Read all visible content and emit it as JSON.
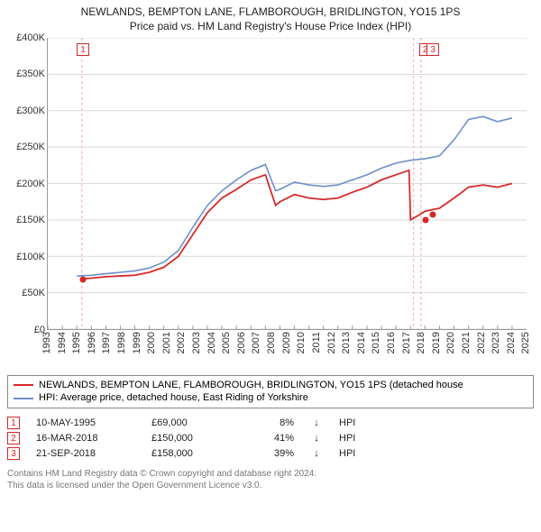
{
  "title": "NEWLANDS, BEMPTON LANE, FLAMBOROUGH, BRIDLINGTON, YO15 1PS",
  "subtitle": "Price paid vs. HM Land Registry's House Price Index (HPI)",
  "chart": {
    "type": "line",
    "background_color": "#ffffff",
    "grid_color": "#d9d9d9",
    "axis_color": "#999999",
    "ylim": [
      0,
      400000
    ],
    "ytick_step": 50000,
    "y_ticks": [
      {
        "v": 0,
        "label": "£0"
      },
      {
        "v": 50000,
        "label": "£50K"
      },
      {
        "v": 100000,
        "label": "£100K"
      },
      {
        "v": 150000,
        "label": "£150K"
      },
      {
        "v": 200000,
        "label": "£200K"
      },
      {
        "v": 250000,
        "label": "£250K"
      },
      {
        "v": 300000,
        "label": "£300K"
      },
      {
        "v": 350000,
        "label": "£350K"
      },
      {
        "v": 400000,
        "label": "£400K"
      }
    ],
    "x_years": [
      1993,
      1994,
      1995,
      1996,
      1997,
      1998,
      1999,
      2000,
      2001,
      2002,
      2003,
      2004,
      2005,
      2006,
      2007,
      2008,
      2009,
      2010,
      2011,
      2012,
      2013,
      2014,
      2015,
      2016,
      2017,
      2018,
      2019,
      2020,
      2021,
      2022,
      2023,
      2024,
      2025
    ],
    "xlim": [
      1993,
      2026
    ],
    "property_series": {
      "color": "#d62728",
      "line_width": 1.8,
      "points": [
        [
          1995.35,
          69000
        ],
        [
          1996,
          70000
        ],
        [
          1997,
          72000
        ],
        [
          1998,
          73000
        ],
        [
          1999,
          74000
        ],
        [
          2000,
          78000
        ],
        [
          2001,
          85000
        ],
        [
          2002,
          100000
        ],
        [
          2003,
          130000
        ],
        [
          2004,
          160000
        ],
        [
          2005,
          180000
        ],
        [
          2006,
          192000
        ],
        [
          2007,
          205000
        ],
        [
          2008,
          212000
        ],
        [
          2008.7,
          170000
        ],
        [
          2009,
          175000
        ],
        [
          2010,
          185000
        ],
        [
          2011,
          180000
        ],
        [
          2012,
          178000
        ],
        [
          2013,
          180000
        ],
        [
          2014,
          188000
        ],
        [
          2015,
          195000
        ],
        [
          2016,
          205000
        ],
        [
          2017,
          212000
        ],
        [
          2017.9,
          218000
        ],
        [
          2018.0,
          150000
        ],
        [
          2018.7,
          158000
        ],
        [
          2019,
          162000
        ],
        [
          2020,
          166000
        ],
        [
          2021,
          180000
        ],
        [
          2022,
          195000
        ],
        [
          2023,
          198000
        ],
        [
          2024,
          195000
        ],
        [
          2025,
          200000
        ]
      ]
    },
    "hpi_series": {
      "color": "#6b8fc9",
      "line_width": 1.6,
      "points": [
        [
          1995,
          73000
        ],
        [
          1996,
          74000
        ],
        [
          1997,
          76000
        ],
        [
          1998,
          78000
        ],
        [
          1999,
          80000
        ],
        [
          2000,
          84000
        ],
        [
          2001,
          92000
        ],
        [
          2002,
          108000
        ],
        [
          2003,
          140000
        ],
        [
          2004,
          170000
        ],
        [
          2005,
          190000
        ],
        [
          2006,
          205000
        ],
        [
          2007,
          218000
        ],
        [
          2008,
          226000
        ],
        [
          2008.7,
          190000
        ],
        [
          2009,
          192000
        ],
        [
          2010,
          202000
        ],
        [
          2011,
          198000
        ],
        [
          2012,
          196000
        ],
        [
          2013,
          198000
        ],
        [
          2014,
          205000
        ],
        [
          2015,
          212000
        ],
        [
          2016,
          221000
        ],
        [
          2017,
          228000
        ],
        [
          2018,
          232000
        ],
        [
          2019,
          234000
        ],
        [
          2020,
          238000
        ],
        [
          2021,
          260000
        ],
        [
          2022,
          288000
        ],
        [
          2023,
          292000
        ],
        [
          2024,
          285000
        ],
        [
          2025,
          290000
        ]
      ]
    },
    "sale_markers": [
      {
        "n": "1",
        "year": 1995.35,
        "value": 69000,
        "color": "#d62728",
        "line_color": "#f4a5a5"
      },
      {
        "n": "2",
        "year": 2018.21,
        "value": 150000,
        "color": "#d62728",
        "line_color": "#f4a5a5"
      },
      {
        "n": "3",
        "year": 2018.72,
        "value": 158000,
        "color": "#d62728",
        "line_color": "#f4a5a5"
      }
    ],
    "label_fontsize": 11
  },
  "legend": {
    "items": [
      {
        "color": "#d62728",
        "label": "NEWLANDS, BEMPTON LANE, FLAMBOROUGH, BRIDLINGTON, YO15 1PS (detached house"
      },
      {
        "color": "#6b8fc9",
        "label": "HPI: Average price, detached house, East Riding of Yorkshire"
      }
    ]
  },
  "sales": {
    "color": "#d62728",
    "hpi_label": "HPI",
    "rows": [
      {
        "n": "1",
        "date": "10-MAY-1995",
        "price": "£69,000",
        "pct": "8%",
        "arrow": "↓"
      },
      {
        "n": "2",
        "date": "16-MAR-2018",
        "price": "£150,000",
        "pct": "41%",
        "arrow": "↓"
      },
      {
        "n": "3",
        "date": "21-SEP-2018",
        "price": "£158,000",
        "pct": "39%",
        "arrow": "↓"
      }
    ]
  },
  "footer_line1": "Contains HM Land Registry data © Crown copyright and database right 2024.",
  "footer_line2": "This data is licensed under the Open Government Licence v3.0."
}
